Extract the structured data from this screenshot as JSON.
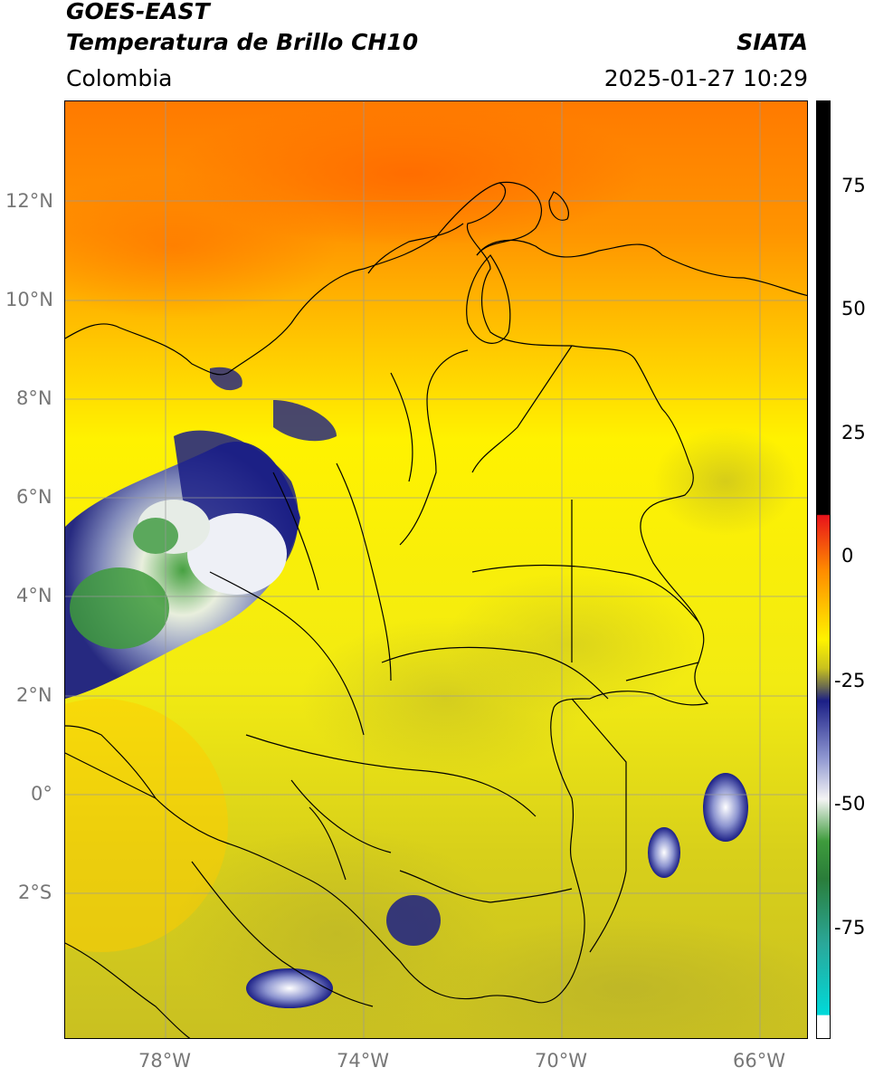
{
  "header": {
    "satellite": "GOES-EAST",
    "product": "Temperatura de Brillo CH10",
    "region": "Colombia",
    "agency": "SIATA",
    "datetime": "2025-01-27 10:29"
  },
  "map": {
    "lat_labels": [
      "12°N",
      "10°N",
      "8°N",
      "6°N",
      "4°N",
      "2°N",
      "0°",
      "2°S"
    ],
    "lon_labels": [
      "78°W",
      "74°W",
      "70°W",
      "66°W"
    ],
    "grid": true,
    "gridline_color": "#999999"
  },
  "colorbar": {
    "ticks": [
      "75",
      "50",
      "25",
      "0",
      "-25",
      "-50",
      "-75"
    ],
    "colors": {
      "warm_black": "#000000",
      "red": "#e8131b",
      "orange": "#ff8a00",
      "yellow": "#fff200",
      "olive": "#c9c21e",
      "navy": "#1b1f86",
      "white": "#f4f4f4",
      "green": "#3e9b3c",
      "cyan": "#00d9d9"
    }
  }
}
